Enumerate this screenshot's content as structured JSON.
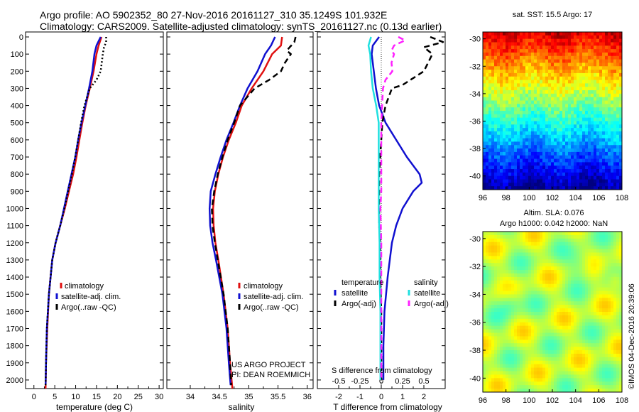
{
  "header": {
    "line1": "Argo profile: AO 5902352_80 27-Nov-2016 20161127_310 35.1249S 101.932E",
    "line2": "Climatology: CARS2009. Satellite-adjusted climatology: synTS_20161127.nc (0.13d earlier)"
  },
  "project_note": {
    "line1": "US ARGO PROJECT",
    "line2": "PI: DEAN ROEMMICH"
  },
  "timestamp": "©IMOS 04-Dec-2016 20:39:06",
  "colors": {
    "climatology": "#e01010",
    "satellite": "#1010d0",
    "argo": "#000000",
    "sal_satellite": "#20e0e0",
    "sal_argo": "#ff20ff"
  },
  "chart_data": [
    {
      "id": "temperature",
      "type": "line",
      "xlabel": "temperature (deg C)",
      "xlim": [
        -2,
        31
      ],
      "ylim": [
        0,
        2050
      ],
      "xticks": [
        0,
        5,
        10,
        15,
        20,
        25,
        30
      ],
      "yticks": [
        0,
        100,
        200,
        300,
        400,
        500,
        600,
        700,
        800,
        900,
        1000,
        1100,
        1200,
        1300,
        1400,
        1500,
        1600,
        1700,
        1800,
        1900,
        2000
      ],
      "legend": [
        "climatology",
        "satellite-adj. clim.",
        "Argo(..raw -QC)"
      ],
      "series": [
        {
          "name": "climatology",
          "color": "#e01010",
          "style": "solid",
          "depth": [
            0,
            50,
            100,
            200,
            300,
            400,
            500,
            600,
            700,
            800,
            900,
            1000,
            1100,
            1200,
            1300,
            1500,
            1700,
            1900,
            2050
          ],
          "values": [
            16.2,
            15.5,
            15.0,
            14.3,
            13.4,
            12.4,
            11.6,
            10.9,
            10.2,
            9.4,
            8.4,
            7.4,
            6.3,
            5.2,
            4.4,
            3.6,
            3.2,
            2.9,
            2.8
          ]
        },
        {
          "name": "satellite-adj. clim.",
          "color": "#1010d0",
          "style": "solid",
          "depth": [
            0,
            50,
            100,
            200,
            300,
            400,
            500,
            600,
            700,
            800,
            900,
            1000,
            1100,
            1200,
            1300,
            1500,
            1700,
            1900,
            2030
          ],
          "values": [
            16.0,
            15.0,
            14.5,
            14.0,
            13.2,
            12.3,
            11.4,
            10.6,
            9.9,
            9.0,
            8.1,
            7.2,
            6.3,
            5.2,
            4.4,
            3.6,
            3.1,
            2.9,
            2.8
          ]
        },
        {
          "name": "Argo(..raw -QC)",
          "color": "#000000",
          "style": "dotted",
          "depth": [
            0,
            30,
            60,
            100,
            200,
            250,
            300,
            400,
            500,
            600,
            700,
            800,
            900,
            1000,
            1100,
            1200,
            1300,
            1500,
            1700,
            1900,
            2030
          ],
          "values": [
            17.3,
            17.3,
            16.8,
            16.5,
            16.0,
            15.0,
            13.4,
            12.1,
            11.3,
            10.6,
            9.9,
            9.1,
            8.2,
            7.3,
            6.3,
            5.2,
            4.4,
            3.6,
            3.1,
            2.9,
            2.8
          ]
        }
      ]
    },
    {
      "id": "salinity",
      "type": "line",
      "xlabel": "salinity",
      "xlim": [
        33.6,
        36.1
      ],
      "ylim": [
        0,
        2050
      ],
      "xticks": [
        34,
        34.5,
        35,
        35.5,
        36
      ],
      "legend": [
        "climatology",
        "satellite-adj. clim.",
        "Argo(..raw -QC)"
      ],
      "series": [
        {
          "name": "climatology",
          "color": "#e01010",
          "style": "solid",
          "depth": [
            0,
            50,
            100,
            200,
            300,
            400,
            500,
            600,
            700,
            800,
            900,
            1000,
            1100,
            1200,
            1300,
            1500,
            1700,
            1900,
            2050
          ],
          "values": [
            35.57,
            35.55,
            35.4,
            35.25,
            35.05,
            34.88,
            34.78,
            34.66,
            34.56,
            34.48,
            34.42,
            34.39,
            34.4,
            34.43,
            34.48,
            34.57,
            34.64,
            34.68,
            34.72
          ]
        },
        {
          "name": "satellite-adj. clim.",
          "color": "#1010d0",
          "style": "solid",
          "depth": [
            0,
            50,
            100,
            200,
            300,
            400,
            500,
            600,
            700,
            800,
            900,
            1000,
            1100,
            1200,
            1300,
            1500,
            1700,
            1900,
            2030
          ],
          "values": [
            35.45,
            35.38,
            35.28,
            35.15,
            34.98,
            34.85,
            34.74,
            34.62,
            34.52,
            34.43,
            34.35,
            34.33,
            34.34,
            34.38,
            34.44,
            34.55,
            34.62,
            34.66,
            34.69
          ]
        },
        {
          "name": "Argo(..raw -QC)",
          "color": "#000000",
          "style": "dashed",
          "depth": [
            0,
            30,
            60,
            80,
            100,
            150,
            200,
            250,
            300,
            400,
            500,
            600,
            700,
            800,
            900,
            1000,
            1100,
            1200,
            1300,
            1500,
            1700,
            1900,
            2030
          ],
          "values": [
            35.8,
            35.78,
            35.7,
            35.65,
            35.72,
            35.62,
            35.55,
            35.35,
            35.1,
            34.85,
            34.75,
            34.64,
            34.55,
            34.47,
            34.41,
            34.37,
            34.38,
            34.42,
            34.47,
            34.57,
            34.64,
            34.68,
            34.7
          ]
        }
      ]
    },
    {
      "id": "difference",
      "type": "line",
      "xlabel": "T difference from climatology",
      "x2label": "S difference from climatology",
      "xlim": [
        -3,
        3
      ],
      "x2lim": [
        -0.75,
        0.75
      ],
      "ylim": [
        0,
        2050
      ],
      "xticks": [
        -2,
        -1,
        0,
        1,
        2
      ],
      "x2ticks": [
        -0.5,
        -0.25,
        0,
        0.25,
        0.5
      ],
      "x2ticklabels": [
        "-0.5",
        "-0.25",
        "0",
        "0.25",
        "0.5"
      ],
      "legend": {
        "temperature_title": "temperature",
        "salinity_title": "salinity",
        "items": [
          "satellite",
          "Argo(-adj)",
          "satellite",
          "Argo(-adj)"
        ]
      },
      "series": [
        {
          "name": "T satellite",
          "color": "#1010d0",
          "style": "solid",
          "axis": "T",
          "depth": [
            0,
            50,
            100,
            200,
            300,
            400,
            500,
            600,
            700,
            800,
            850,
            900,
            1000,
            1100,
            1200,
            1400,
            1600,
            1800,
            2000
          ],
          "values": [
            -0.1,
            -0.4,
            -0.45,
            -0.35,
            -0.25,
            -0.1,
            0.2,
            0.7,
            1.2,
            1.8,
            1.9,
            1.5,
            1.0,
            0.7,
            0.5,
            0.3,
            0.15,
            0.1,
            0.1
          ]
        },
        {
          "name": "T Argo(-adj)",
          "color": "#000000",
          "style": "dashed",
          "axis": "T",
          "depth": [
            0,
            30,
            60,
            100,
            200,
            280,
            300,
            400,
            500,
            600,
            700,
            800,
            900,
            1000,
            1100,
            1200,
            1400,
            1600,
            1800,
            2000
          ],
          "values": [
            2.3,
            2.9,
            2.0,
            2.4,
            2.0,
            1.0,
            0.5,
            0.2,
            0.05,
            0.0,
            -0.05,
            -0.1,
            -0.1,
            -0.1,
            -0.1,
            -0.05,
            -0.05,
            0.0,
            0.0,
            0.0
          ]
        },
        {
          "name": "S satellite",
          "color": "#20e0e0",
          "style": "solid",
          "axis": "S",
          "depth": [
            0,
            50,
            100,
            200,
            300,
            400,
            500,
            600,
            700,
            800,
            900,
            1000,
            1200,
            1400,
            1600,
            1800,
            2000
          ],
          "values": [
            -0.12,
            -0.15,
            -0.13,
            -0.12,
            -0.1,
            -0.06,
            -0.03,
            -0.03,
            -0.03,
            -0.03,
            -0.03,
            -0.03,
            -0.02,
            -0.02,
            -0.01,
            -0.01,
            -0.01
          ]
        },
        {
          "name": "S Argo(-adj)",
          "color": "#ff20ff",
          "style": "dashed",
          "axis": "S",
          "depth": [
            0,
            20,
            50,
            80,
            100,
            150,
            200,
            250,
            300,
            400,
            500,
            600,
            700,
            800,
            900,
            1000,
            1200,
            1400,
            1600,
            1800,
            2000
          ],
          "values": [
            0.2,
            0.28,
            0.15,
            0.12,
            0.15,
            0.12,
            0.13,
            0.05,
            0.02,
            0.01,
            0.0,
            0.0,
            0.0,
            0.0,
            0.0,
            -0.01,
            0.0,
            0.0,
            0.0,
            0.0,
            0.0
          ]
        }
      ]
    },
    {
      "id": "sst_map",
      "type": "heatmap",
      "title": "sat. SST: 15.5 Argo: 17",
      "xlim": [
        96,
        108
      ],
      "ylim": [
        -41,
        -29.5
      ],
      "xticks": [
        96,
        98,
        100,
        102,
        104,
        106,
        108
      ],
      "yticks": [
        -30,
        -32,
        -34,
        -36,
        -38,
        -40
      ]
    },
    {
      "id": "sla_map",
      "type": "heatmap",
      "title_line1": "Altim. SLA: 0.076",
      "title_line2": "Argo h1000: 0.042 h2000: NaN",
      "xlim": [
        96,
        108
      ],
      "ylim": [
        -41,
        -29.5
      ],
      "xticks": [
        96,
        98,
        100,
        102,
        104,
        106,
        108
      ],
      "yticks": [
        -30,
        -32,
        -34,
        -36,
        -38,
        -40
      ]
    }
  ]
}
